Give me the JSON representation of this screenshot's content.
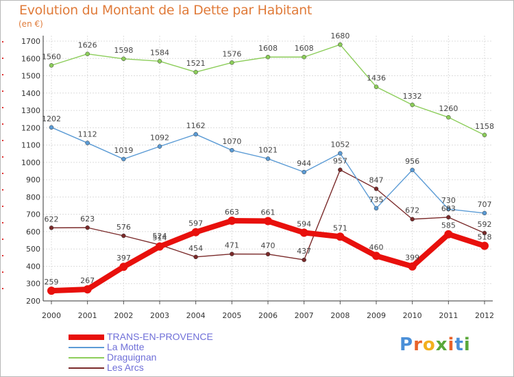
{
  "title": "Evolution du Montant de la Dette par Habitant",
  "unit": "(en €)",
  "logo": {
    "text": "Proxiti",
    "letter_colors": [
      "#4a8fd8",
      "#e8632a",
      "#f2b01e",
      "#5aa83a",
      "#e8632a",
      "#4a8fd8",
      "#5aa83a"
    ]
  },
  "chart_data": {
    "type": "line",
    "title": "Evolution du Montant de la Dette par Habitant",
    "ylabel": "(en €)",
    "xlabel": "",
    "x": [
      "2000",
      "2001",
      "2002",
      "2003",
      "2004",
      "2005",
      "2006",
      "2007",
      "2008",
      "2009",
      "2010",
      "2011",
      "2012"
    ],
    "ylim": [
      200,
      1700
    ],
    "yticks": [
      200,
      300,
      400,
      500,
      600,
      700,
      800,
      900,
      1000,
      1100,
      1200,
      1300,
      1400,
      1500,
      1600,
      1700
    ],
    "grid": true,
    "legend_position": "bottom-left",
    "series": [
      {
        "name": "TRANS-EN-PROVENCE",
        "color": "#e8100c",
        "emphasis": true,
        "values": [
          259,
          267,
          397,
          514,
          597,
          663,
          661,
          594,
          571,
          460,
          399,
          585,
          518
        ]
      },
      {
        "name": "La Motte",
        "color": "#5b9bd5",
        "values": [
          1202,
          1112,
          1019,
          1092,
          1162,
          1070,
          1021,
          944,
          1052,
          735,
          956,
          730,
          707
        ]
      },
      {
        "name": "Draguignan",
        "color": "#8ccd5a",
        "values": [
          1560,
          1626,
          1598,
          1584,
          1521,
          1576,
          1608,
          1608,
          1680,
          1436,
          1332,
          1260,
          1158
        ]
      },
      {
        "name": "Les Arcs",
        "color": "#7a2a2a",
        "values": [
          622,
          623,
          576,
          524,
          454,
          471,
          470,
          437,
          957,
          847,
          672,
          683,
          592
        ]
      }
    ]
  }
}
